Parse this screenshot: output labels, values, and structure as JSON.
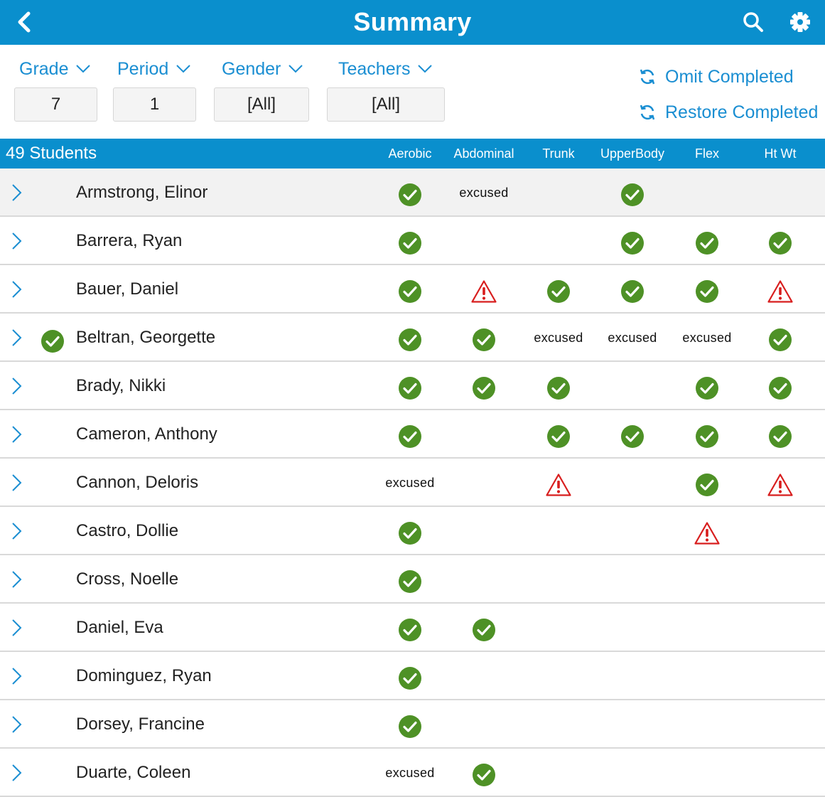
{
  "header": {
    "title": "Summary",
    "back_icon": "chevron-left-icon",
    "search_icon": "search-icon",
    "settings_icon": "gear-icon"
  },
  "filters": [
    {
      "label": "Grade",
      "value": "7"
    },
    {
      "label": "Period",
      "value": "1"
    },
    {
      "label": "Gender",
      "value": "[All]"
    },
    {
      "label": "Teachers",
      "value": "[All]"
    }
  ],
  "actions": {
    "omit": "Omit Completed",
    "restore": "Restore Completed"
  },
  "table": {
    "count": "49 Students",
    "columns": [
      "Aerobic",
      "Abdominal",
      "Trunk",
      "UpperBody",
      "Flex",
      "Ht Wt"
    ],
    "rows": [
      {
        "name": "Armstrong, Elinor",
        "complete": false,
        "cells": [
          "ok",
          "excused",
          "",
          "ok",
          "",
          ""
        ]
      },
      {
        "name": "Barrera, Ryan",
        "complete": false,
        "cells": [
          "ok",
          "",
          "",
          "ok",
          "ok",
          "ok"
        ]
      },
      {
        "name": "Bauer, Daniel",
        "complete": false,
        "cells": [
          "ok",
          "warn",
          "ok",
          "ok",
          "ok",
          "warn"
        ]
      },
      {
        "name": "Beltran, Georgette",
        "complete": true,
        "cells": [
          "ok",
          "ok",
          "excused",
          "excused",
          "excused",
          "ok"
        ]
      },
      {
        "name": "Brady, Nikki",
        "complete": false,
        "cells": [
          "ok",
          "ok",
          "ok",
          "",
          "ok",
          "ok"
        ]
      },
      {
        "name": "Cameron, Anthony",
        "complete": false,
        "cells": [
          "ok",
          "",
          "ok",
          "ok",
          "ok",
          "ok"
        ]
      },
      {
        "name": "Cannon, Deloris",
        "complete": false,
        "cells": [
          "excused",
          "",
          "warn",
          "",
          "ok",
          "warn"
        ]
      },
      {
        "name": "Castro, Dollie",
        "complete": false,
        "cells": [
          "ok",
          "",
          "",
          "",
          "warn",
          ""
        ]
      },
      {
        "name": "Cross, Noelle",
        "complete": false,
        "cells": [
          "ok",
          "",
          "",
          "",
          "",
          ""
        ]
      },
      {
        "name": "Daniel, Eva",
        "complete": false,
        "cells": [
          "ok",
          "ok",
          "",
          "",
          "",
          ""
        ]
      },
      {
        "name": "Dominguez, Ryan",
        "complete": false,
        "cells": [
          "ok",
          "",
          "",
          "",
          "",
          ""
        ]
      },
      {
        "name": "Dorsey, Francine",
        "complete": false,
        "cells": [
          "ok",
          "",
          "",
          "",
          "",
          ""
        ]
      },
      {
        "name": "Duarte, Coleen",
        "complete": false,
        "cells": [
          "excused",
          "ok",
          "",
          "",
          "",
          ""
        ]
      }
    ]
  },
  "status_text": {
    "excused": "excused"
  },
  "colors": {
    "accent": "#0a8fcd",
    "link": "#1a8ed2",
    "ok": "#4e9126",
    "warn": "#d81e1e"
  }
}
